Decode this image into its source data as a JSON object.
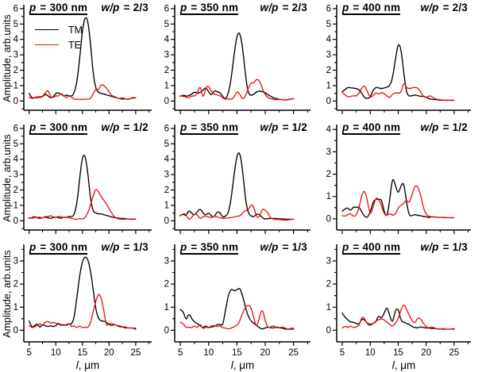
{
  "figure": {
    "background": "#ffffff",
    "axis_color": "#000000",
    "ylabel": "Amplitude, arb.units",
    "xlabel_var": "l",
    "xlabel_rest": ", μm",
    "x_start": 5,
    "x_step": 0.5,
    "legend": {
      "position": "top-left of first panel",
      "items": [
        {
          "label": "TM",
          "color": "#000000"
        },
        {
          "label": "TE",
          "color": "#ee1111"
        }
      ]
    }
  },
  "chart_data": [
    {
      "type": "line",
      "title_left_var": "p",
      "title_left_rest": " = 300 nm",
      "title_right_var": "w/p",
      "title_right_rest": " = 2/3",
      "xlim": [
        4,
        28
      ],
      "ylim": [
        -0.6,
        6.15
      ],
      "xticks": [
        5,
        10,
        15,
        20,
        25
      ],
      "yticks": [
        0,
        1,
        2,
        3,
        4,
        5,
        6
      ],
      "legend": true,
      "series": [
        {
          "name": "TM",
          "color": "#000000",
          "y": [
            0.5,
            0.15,
            0.25,
            0.2,
            0.3,
            0.25,
            0.45,
            0.35,
            0.2,
            0.25,
            0.5,
            0.55,
            0.45,
            0.3,
            0.4,
            0.35,
            0.3,
            0.55,
            1.3,
            2.8,
            4.6,
            5.5,
            5.3,
            3.8,
            1.8,
            0.8,
            0.55,
            0.5,
            0.45,
            0.4,
            0.35,
            0.3,
            0.25,
            0.2,
            0.15,
            0.2,
            0.15,
            0.1,
            0.15,
            0.2,
            0.2
          ]
        },
        {
          "name": "TE",
          "color": "#ee1111",
          "y": [
            0.25,
            0.15,
            0.2,
            0.3,
            0.2,
            0.3,
            0.5,
            0.75,
            0.3,
            0.2,
            0.35,
            0.3,
            0.5,
            0.35,
            0.2,
            0.35,
            0.25,
            0.1,
            0.12,
            0.1,
            0.1,
            0.12,
            0.1,
            0.15,
            0.45,
            0.8,
            0.7,
            1.1,
            1.0,
            0.85,
            0.6,
            0.35,
            0.3,
            0.2,
            0.15,
            0.1,
            0.15,
            0.1,
            0.15,
            0.25,
            0.2
          ]
        }
      ]
    },
    {
      "type": "line",
      "title_left_var": "p",
      "title_left_rest": " = 350 nm",
      "title_right_var": "w/p",
      "title_right_rest": " = 2/3",
      "xlim": [
        4,
        28
      ],
      "ylim": [
        -0.6,
        6.15
      ],
      "xticks": [
        5,
        10,
        15,
        20,
        25
      ],
      "yticks": [
        0,
        1,
        2,
        3,
        4,
        5,
        6
      ],
      "legend": false,
      "series": [
        {
          "name": "TM",
          "color": "#000000",
          "y": [
            0.3,
            0.4,
            0.3,
            0.35,
            0.45,
            0.6,
            0.5,
            0.55,
            0.7,
            0.9,
            0.6,
            0.35,
            0.7,
            0.6,
            0.55,
            0.3,
            0.1,
            0.5,
            1.5,
            3.0,
            4.3,
            4.5,
            3.5,
            1.7,
            0.5,
            0.35,
            0.45,
            0.6,
            0.65,
            0.6,
            0.55,
            0.4,
            0.3,
            0.2,
            0.15,
            0.1,
            0.1,
            0.05,
            0.08,
            0.12,
            0.15
          ]
        },
        {
          "name": "TE",
          "color": "#ee1111",
          "y": [
            0.35,
            0.3,
            0.25,
            0.2,
            0.35,
            0.3,
            0.5,
            1.05,
            0.1,
            0.9,
            1.0,
            0.6,
            0.45,
            0.4,
            0.35,
            0.2,
            0.1,
            0.15,
            0.1,
            0.25,
            0.65,
            0.45,
            0.1,
            0.3,
            0.8,
            1.2,
            1.15,
            1.45,
            1.3,
            0.8,
            0.4,
            0.2,
            0.15,
            0.1,
            0.08,
            0.1,
            0.1,
            0.05,
            0.1,
            0.12,
            0.15
          ]
        }
      ]
    },
    {
      "type": "line",
      "title_left_var": "p",
      "title_left_rest": " = 400 nm",
      "title_right_var": "w/p",
      "title_right_rest": " = 2/3",
      "xlim": [
        4,
        28
      ],
      "ylim": [
        -0.6,
        6.15
      ],
      "xticks": [
        5,
        10,
        15,
        20,
        25
      ],
      "yticks": [
        0,
        1,
        2,
        3,
        4,
        5,
        6
      ],
      "legend": false,
      "series": [
        {
          "name": "TM",
          "color": "#000000",
          "y": [
            0.6,
            0.75,
            0.9,
            0.85,
            0.85,
            0.8,
            0.75,
            0.5,
            0.2,
            0.15,
            0.25,
            0.7,
            0.9,
            0.85,
            0.8,
            0.85,
            0.9,
            1.0,
            1.5,
            2.7,
            3.8,
            3.4,
            1.8,
            0.5,
            0.3,
            0.35,
            0.4,
            0.35,
            0.3,
            0.3,
            0.25,
            0.15,
            0.1,
            0.1,
            0.08,
            0.05,
            0.05,
            0.05,
            0.05,
            0.05,
            0.05
          ]
        },
        {
          "name": "TE",
          "color": "#ee1111",
          "y": [
            0.55,
            0.4,
            0.25,
            0.3,
            0.35,
            0.3,
            0.5,
            0.9,
            1.0,
            0.6,
            0.2,
            0.35,
            0.55,
            0.45,
            0.55,
            0.5,
            0.3,
            0.2,
            0.45,
            0.55,
            0.5,
            0.55,
            1.25,
            0.85,
            0.8,
            0.85,
            0.9,
            0.85,
            0.6,
            0.3,
            0.2,
            0.35,
            0.3,
            0.15,
            0.1,
            0.08,
            0.05,
            0.05,
            0.05,
            0.05,
            0.05
          ]
        }
      ]
    },
    {
      "type": "line",
      "title_left_var": "p",
      "title_left_rest": " = 300 nm",
      "title_right_var": "w/p",
      "title_right_rest": " = 1/2",
      "xlim": [
        4,
        28
      ],
      "ylim": [
        -0.6,
        6.15
      ],
      "xticks": [
        5,
        10,
        15,
        20,
        25
      ],
      "yticks": [
        0,
        1,
        2,
        3,
        4,
        5,
        6
      ],
      "legend": false,
      "series": [
        {
          "name": "TM",
          "color": "#000000",
          "y": [
            0.2,
            0.15,
            0.25,
            0.2,
            0.15,
            0.2,
            0.25,
            0.2,
            0.15,
            0.2,
            0.25,
            0.2,
            0.15,
            0.25,
            0.2,
            0.3,
            0.25,
            0.4,
            1.2,
            2.8,
            4.2,
            4.3,
            3.2,
            1.4,
            0.6,
            0.5,
            0.45,
            0.45,
            0.4,
            0.35,
            0.3,
            0.25,
            0.2,
            0.2,
            0.15,
            0.15,
            0.15,
            0.1,
            0.1,
            0.1,
            0.1
          ]
        },
        {
          "name": "TE",
          "color": "#ee1111",
          "y": [
            0.15,
            0.2,
            0.3,
            0.2,
            0.25,
            0.15,
            0.3,
            0.25,
            0.35,
            0.25,
            0.2,
            0.3,
            0.25,
            0.2,
            0.25,
            0.2,
            0.15,
            0.1,
            0.1,
            0.15,
            0.1,
            0.2,
            0.5,
            1.0,
            1.6,
            2.1,
            1.9,
            1.6,
            1.35,
            1.1,
            0.8,
            0.5,
            0.25,
            0.15,
            0.1,
            0.1,
            0.1,
            0.12,
            0.1,
            0.12,
            0.1
          ]
        }
      ]
    },
    {
      "type": "line",
      "title_left_var": "p",
      "title_left_rest": " = 350 nm",
      "title_right_var": "w/p",
      "title_right_rest": " = 1/2",
      "xlim": [
        4,
        28
      ],
      "ylim": [
        -0.6,
        6.15
      ],
      "xticks": [
        5,
        10,
        15,
        20,
        25
      ],
      "yticks": [
        0,
        1,
        2,
        3,
        4,
        5,
        6
      ],
      "legend": false,
      "series": [
        {
          "name": "TM",
          "color": "#000000",
          "y": [
            0.35,
            0.45,
            0.3,
            0.7,
            0.5,
            0.35,
            0.6,
            0.8,
            0.5,
            0.35,
            0.55,
            0.3,
            0.25,
            0.6,
            0.55,
            0.2,
            0.3,
            0.5,
            1.5,
            3.0,
            4.3,
            4.5,
            3.3,
            1.4,
            0.5,
            0.3,
            0.25,
            0.45,
            0.4,
            0.2,
            0.1,
            0.15,
            0.15,
            0.15,
            0.15,
            0.12,
            0.12,
            0.1,
            0.1,
            0.1,
            0.1
          ]
        },
        {
          "name": "TE",
          "color": "#ee1111",
          "y": [
            0.3,
            0.5,
            0.4,
            0.05,
            0.2,
            0.45,
            0.4,
            0.1,
            0.3,
            0.3,
            0.25,
            0.2,
            0.3,
            0.25,
            0.2,
            0.15,
            0.15,
            0.2,
            0.2,
            0.25,
            0.3,
            0.3,
            0.5,
            0.7,
            0.65,
            1.1,
            0.9,
            0.2,
            0.25,
            0.8,
            0.7,
            0.5,
            0.15,
            0.1,
            0.1,
            0.08,
            0.05,
            0.05,
            0.05,
            0.08,
            0.1
          ]
        }
      ]
    },
    {
      "type": "line",
      "title_left_var": "p",
      "title_left_rest": " = 400 nm",
      "title_right_var": "w/p",
      "title_right_rest": " = 1/2",
      "xlim": [
        4,
        28
      ],
      "ylim": [
        -0.5,
        4.15
      ],
      "xticks": [
        5,
        10,
        15,
        20,
        25
      ],
      "yticks": [
        0,
        1,
        2,
        3,
        4
      ],
      "legend": false,
      "series": [
        {
          "name": "TM",
          "color": "#000000",
          "y": [
            0.35,
            0.45,
            0.5,
            0.35,
            0.55,
            0.5,
            0.55,
            0.3,
            0.1,
            0.05,
            0.3,
            0.75,
            0.9,
            0.85,
            0.9,
            0.3,
            0.05,
            0.9,
            1.9,
            1.5,
            1.1,
            1.5,
            1.65,
            0.7,
            0.12,
            0.15,
            0.2,
            0.15,
            0.15,
            0.1,
            0.1,
            0.05,
            0.1,
            0.08,
            0.08,
            0.06,
            0.06,
            0.05,
            0.05,
            0.05,
            0.05
          ]
        },
        {
          "name": "TE",
          "color": "#ee1111",
          "y": [
            0.15,
            0.1,
            0.2,
            0.25,
            0.1,
            0.15,
            0.5,
            1.1,
            1.3,
            0.8,
            0.15,
            0.5,
            0.95,
            0.9,
            0.6,
            0.2,
            0.15,
            0.25,
            0.15,
            0.2,
            0.5,
            0.6,
            0.7,
            0.85,
            0.7,
            1.1,
            1.5,
            1.45,
            1.1,
            0.5,
            0.2,
            0.1,
            0.1,
            0.08,
            0.08,
            0.06,
            0.05,
            0.05,
            0.05,
            0.05,
            0.05
          ]
        }
      ]
    },
    {
      "type": "line",
      "title_left_var": "p",
      "title_left_rest": " = 300 nm",
      "title_right_var": "w/p",
      "title_right_rest": " = 1/3",
      "xlim": [
        4,
        28
      ],
      "ylim": [
        -0.5,
        3.65
      ],
      "xticks": [
        5,
        10,
        15,
        20,
        25
      ],
      "yticks": [
        0,
        1,
        2,
        3
      ],
      "legend": false,
      "series": [
        {
          "name": "TM",
          "color": "#000000",
          "y": [
            0.4,
            0.1,
            0.2,
            0.3,
            0.1,
            0.25,
            0.2,
            0.15,
            0.2,
            0.15,
            0.2,
            0.3,
            0.2,
            0.25,
            0.2,
            0.3,
            0.25,
            0.6,
            1.5,
            2.4,
            3.0,
            3.2,
            3.1,
            2.6,
            1.8,
            0.9,
            0.5,
            0.4,
            0.4,
            0.35,
            0.25,
            0.2,
            0.25,
            0.2,
            0.15,
            0.15,
            0.1,
            0.1,
            0.1,
            0.1,
            0.05
          ]
        },
        {
          "name": "TE",
          "color": "#ee1111",
          "y": [
            0.2,
            0.1,
            0.15,
            0.2,
            0.3,
            0.2,
            0.35,
            0.4,
            0.3,
            0.35,
            0.3,
            0.3,
            0.25,
            0.2,
            0.25,
            0.3,
            0.15,
            0.2,
            0.1,
            0.2,
            0.1,
            0.15,
            0.1,
            0.3,
            0.8,
            1.25,
            1.6,
            1.45,
            0.9,
            0.15,
            0.3,
            0.3,
            0.25,
            0.2,
            0.2,
            0.15,
            0.15,
            0.1,
            0.1,
            0.1,
            0.1
          ]
        }
      ]
    },
    {
      "type": "line",
      "title_left_var": "p",
      "title_left_rest": " = 350 nm",
      "title_right_var": "w/p",
      "title_right_rest": " = 1/3",
      "xlim": [
        4,
        28
      ],
      "ylim": [
        -0.5,
        3.65
      ],
      "xticks": [
        5,
        10,
        15,
        20,
        25
      ],
      "yticks": [
        0,
        1,
        2,
        3
      ],
      "legend": false,
      "series": [
        {
          "name": "TM",
          "color": "#000000",
          "y": [
            0.9,
            0.85,
            0.4,
            0.75,
            0.5,
            0.35,
            0.3,
            0.2,
            0.1,
            0.2,
            0.1,
            0.15,
            0.15,
            0.25,
            0.25,
            0.2,
            0.9,
            1.55,
            1.8,
            1.7,
            1.75,
            1.85,
            1.5,
            1.0,
            0.6,
            0.4,
            0.3,
            0.2,
            0.1,
            0.05,
            0.1,
            0.15,
            0.1,
            0.1,
            0.15,
            0.1,
            0.1,
            0.05,
            0.05,
            0.05,
            0.05
          ]
        },
        {
          "name": "TE",
          "color": "#ee1111",
          "y": [
            0.35,
            0.3,
            0.1,
            0.15,
            0.1,
            0.2,
            0.1,
            0.3,
            0.05,
            0.15,
            0.1,
            0.2,
            0.2,
            0.15,
            0.2,
            0.1,
            0.1,
            0.05,
            0.1,
            0.15,
            0.2,
            0.4,
            0.75,
            1.0,
            1.1,
            1.0,
            0.5,
            0.1,
            0.6,
            0.95,
            0.4,
            0.1,
            0.15,
            0.2,
            0.1,
            0.1,
            0.15,
            0.1,
            0.05,
            0.08,
            0.1
          ]
        }
      ]
    },
    {
      "type": "line",
      "title_left_var": "p",
      "title_left_rest": " = 400 nm",
      "title_right_var": "w/p",
      "title_right_rest": " = 1/3",
      "xlim": [
        4,
        28
      ],
      "ylim": [
        -0.5,
        3.65
      ],
      "xticks": [
        5,
        10,
        15,
        20,
        25
      ],
      "yticks": [
        0,
        1,
        2,
        3
      ],
      "legend": false,
      "series": [
        {
          "name": "TM",
          "color": "#000000",
          "y": [
            0.75,
            0.55,
            0.45,
            0.35,
            0.35,
            0.3,
            0.25,
            0.5,
            0.45,
            0.3,
            0.25,
            0.3,
            0.35,
            0.65,
            0.5,
            0.75,
            1.05,
            0.6,
            0.3,
            0.9,
            0.95,
            0.4,
            0.35,
            0.3,
            0.25,
            0.15,
            0.12,
            0.1,
            0.15,
            0.12,
            0.1,
            0.1,
            0.08,
            0.08,
            0.06,
            0.06,
            0.05,
            0.05,
            0.05,
            0.05,
            0.05
          ]
        },
        {
          "name": "TE",
          "color": "#ee1111",
          "y": [
            0.1,
            0.2,
            0.1,
            0.2,
            0.1,
            0.15,
            0.2,
            0.6,
            0.5,
            0.25,
            0.2,
            0.3,
            0.4,
            0.45,
            0.5,
            0.45,
            0.35,
            0.25,
            0.15,
            0.3,
            0.5,
            0.9,
            1.15,
            0.9,
            0.65,
            0.4,
            0.3,
            0.55,
            0.5,
            0.3,
            0.15,
            0.1,
            0.15,
            0.1,
            0.05,
            0.05,
            0.08,
            0.05,
            0.05,
            0.05,
            0.08
          ]
        }
      ]
    }
  ]
}
